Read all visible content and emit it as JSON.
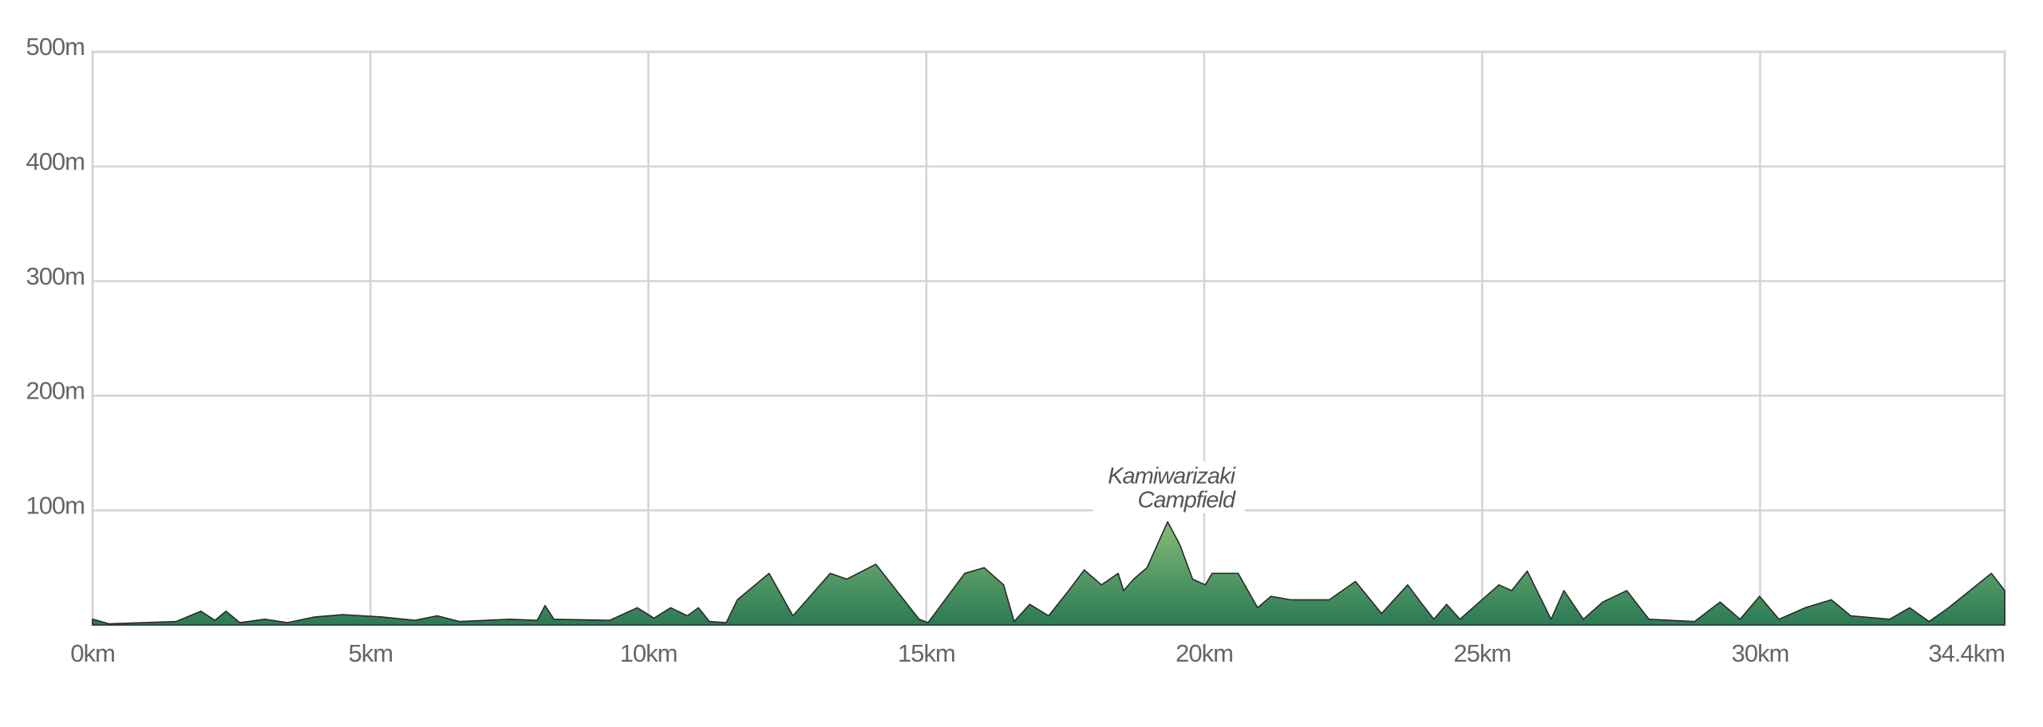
{
  "chart_data": {
    "type": "area",
    "x": [
      0,
      0.3,
      1.5,
      1.95,
      2.2,
      2.4,
      2.65,
      3.1,
      3.5,
      4.0,
      4.5,
      5.2,
      5.8,
      6.2,
      6.6,
      7.5,
      8.0,
      8.14,
      8.3,
      9.3,
      9.8,
      10.1,
      10.4,
      10.7,
      10.9,
      11.1,
      11.4,
      11.6,
      12.17,
      12.6,
      13.27,
      13.57,
      14.09,
      14.87,
      15.03,
      15.69,
      16.04,
      16.39,
      16.58,
      16.86,
      17.2,
      17.56,
      17.84,
      18.15,
      18.45,
      18.55,
      18.73,
      18.97,
      19.34,
      19.56,
      19.79,
      20.02,
      20.14,
      20.61,
      20.96,
      21.2,
      21.55,
      22.25,
      22.72,
      23.19,
      23.66,
      23.89,
      24.13,
      24.36,
      24.6,
      24.95,
      25.3,
      25.53,
      25.81,
      26.24,
      26.47,
      26.82,
      27.17,
      27.6,
      28.0,
      28.82,
      29.28,
      29.64,
      29.99,
      30.34,
      30.81,
      31.28,
      31.63,
      32.33,
      32.69,
      33.04,
      33.39,
      34.16,
      34.4
    ],
    "values": [
      5,
      1,
      3,
      12,
      4,
      12,
      2,
      5,
      2,
      7,
      9,
      7,
      4,
      8,
      3,
      5,
      4,
      17,
      5,
      4,
      15,
      6,
      15,
      8,
      15,
      3,
      2,
      22,
      45,
      8,
      45,
      40,
      53,
      5,
      2,
      45,
      50,
      35,
      3,
      18,
      8,
      30,
      48,
      35,
      45,
      30,
      40,
      50,
      90,
      70,
      40,
      35,
      45,
      45,
      15,
      25,
      22,
      22,
      38,
      10,
      35,
      20,
      5,
      18,
      5,
      20,
      35,
      30,
      47,
      5,
      30,
      5,
      20,
      30,
      5,
      3,
      20,
      5,
      25,
      5,
      15,
      22,
      8,
      5,
      15,
      3,
      15,
      45,
      30
    ],
    "color": "#2b7a55",
    "xlim": [
      0,
      34.4
    ],
    "ylim": [
      0,
      500
    ],
    "xticks": [
      {
        "value": 0,
        "label": "0km"
      },
      {
        "value": 5,
        "label": "5km"
      },
      {
        "value": 10,
        "label": "10km"
      },
      {
        "value": 15,
        "label": "15km"
      },
      {
        "value": 20,
        "label": "20km"
      },
      {
        "value": 25,
        "label": "25km"
      },
      {
        "value": 30,
        "label": "30km"
      },
      {
        "value": 34.4,
        "label": "34.4km"
      }
    ],
    "yticks": [
      {
        "value": 100,
        "label": "100m"
      },
      {
        "value": 200,
        "label": "200m"
      },
      {
        "value": 300,
        "label": "300m"
      },
      {
        "value": 400,
        "label": "400m"
      },
      {
        "value": 500,
        "label": "500m"
      }
    ],
    "grid": true,
    "annotation": [
      "Kamiwarizaki",
      "Campfield"
    ]
  }
}
